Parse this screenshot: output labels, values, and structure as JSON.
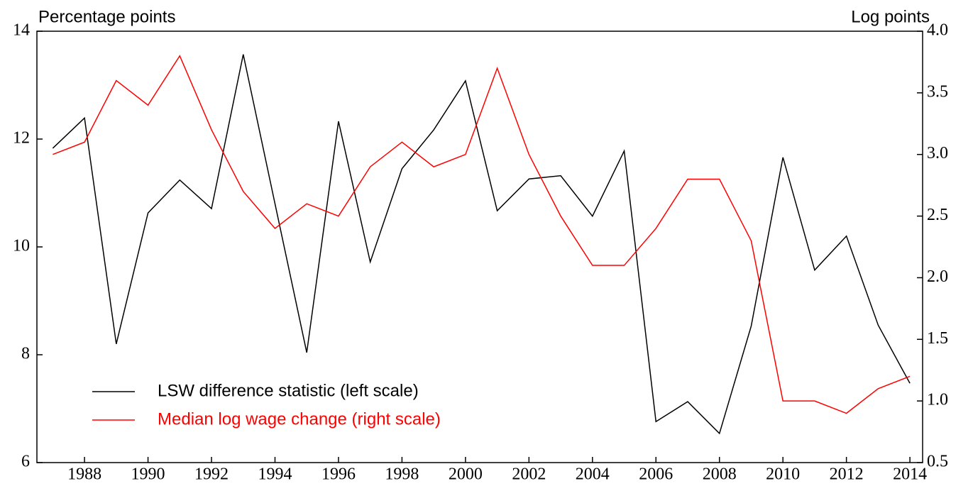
{
  "chart_data": {
    "type": "line",
    "y_label": "Percentage points",
    "y2_label": "Log points",
    "x": [
      1987,
      1988,
      1989,
      1990,
      1991,
      1992,
      1993,
      1994,
      1995,
      1996,
      1997,
      1998,
      1999,
      2000,
      2001,
      2002,
      2003,
      2004,
      2005,
      2006,
      2007,
      2008,
      2009,
      2010,
      2011,
      2012,
      2013,
      2014
    ],
    "series": [
      {
        "name": "LSW difference statistic (left scale)",
        "color": "#000000",
        "values": [
          11.83,
          12.39,
          8.2,
          10.63,
          11.24,
          10.71,
          13.57,
          10.8,
          8.04,
          12.33,
          9.72,
          11.45,
          12.17,
          13.08,
          10.67,
          11.26,
          11.32,
          10.57,
          11.78,
          6.76,
          7.13,
          6.54,
          8.53,
          11.66,
          9.57,
          10.2,
          8.55,
          7.47
        ]
      },
      {
        "name": "Median log wage change (right scale)",
        "color": "#ff0000",
        "axis": "y2",
        "values": [
          3.0,
          3.1,
          3.6,
          3.4,
          3.8,
          3.2,
          2.7,
          2.4,
          2.6,
          2.5,
          2.9,
          3.1,
          2.9,
          3.0,
          3.7,
          3.0,
          2.5,
          2.1,
          2.1,
          2.4,
          2.8,
          2.8,
          2.3,
          1.0,
          1.0,
          0.9,
          1.1,
          1.2
        ]
      }
    ],
    "xlim": [
      1986.5,
      2014.4
    ],
    "xticks": [
      1988,
      1990,
      1992,
      1994,
      1996,
      1998,
      2000,
      2002,
      2004,
      2006,
      2008,
      2010,
      2012,
      2014
    ],
    "ylim": [
      6,
      14
    ],
    "yticks": [
      6,
      8,
      10,
      12,
      14
    ],
    "y2lim": [
      0.5,
      4.0
    ],
    "y2ticks": [
      {
        "value": 0.5,
        "label": "0.5"
      },
      {
        "value": 1,
        "label": "1.0"
      },
      {
        "value": 1.5,
        "label": "1.5"
      },
      {
        "value": 2,
        "label": "2.0"
      },
      {
        "value": 2.5,
        "label": "2.5"
      },
      {
        "value": 3,
        "label": "3.0"
      },
      {
        "value": 3.5,
        "label": "3.5"
      },
      {
        "value": 4,
        "label": "4.0"
      }
    ],
    "legend": "lower-left"
  }
}
